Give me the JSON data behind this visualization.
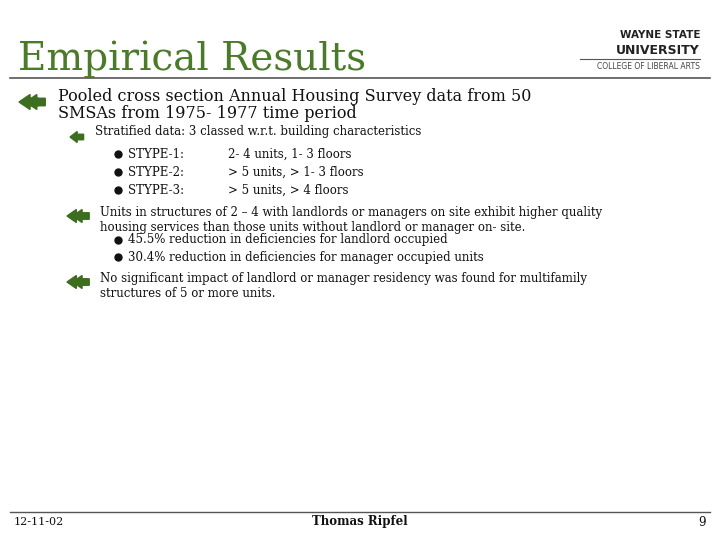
{
  "title": "Empirical Results",
  "title_color": "#4a7a2a",
  "title_fontsize": 28,
  "bg_color": "#ffffff",
  "separator_color": "#555555",
  "bullet_color": "#3d6e1f",
  "text_color": "#111111",
  "footer_date": "12-11-02",
  "footer_author": "Thomas Ripfel",
  "footer_page": "9",
  "bullet1_line1": "Pooled cross section Annual Housing Survey data from 50",
  "bullet1_line2": "SMSAs from 1975- 1977 time period",
  "sub_bullet1": "Stratified data: 3 classed w.r.t. building characteristics",
  "sub_sub_bullets": [
    [
      "STYPE-1:",
      "2- 4 units, 1- 3 floors"
    ],
    [
      "STYPE-2:",
      "> 5 units, > 1- 3 floors"
    ],
    [
      "STYPE-3:",
      "> 5 units, > 4 floors"
    ]
  ],
  "bullet2_line1": "Units in structures of 2 – 4 with landlords or managers on site exhibit higher quality",
  "bullet2_line2": "housing services than those units without landlord or manager on- site.",
  "sub_bullet2a": "45.5% reduction in deficiencies for landlord occupied",
  "sub_bullet2b": "30.4% reduction in deficiencies for manager occupied units",
  "bullet3_line1": "No significant impact of landlord or manager residency was found for multifamily",
  "bullet3_line2": "structures of 5 or more units.",
  "wsu_line1": "WAYNE STATE",
  "wsu_line2": "UNIVERSITY",
  "wsu_line3": "COLLEGE OF LIBERAL ARTS"
}
